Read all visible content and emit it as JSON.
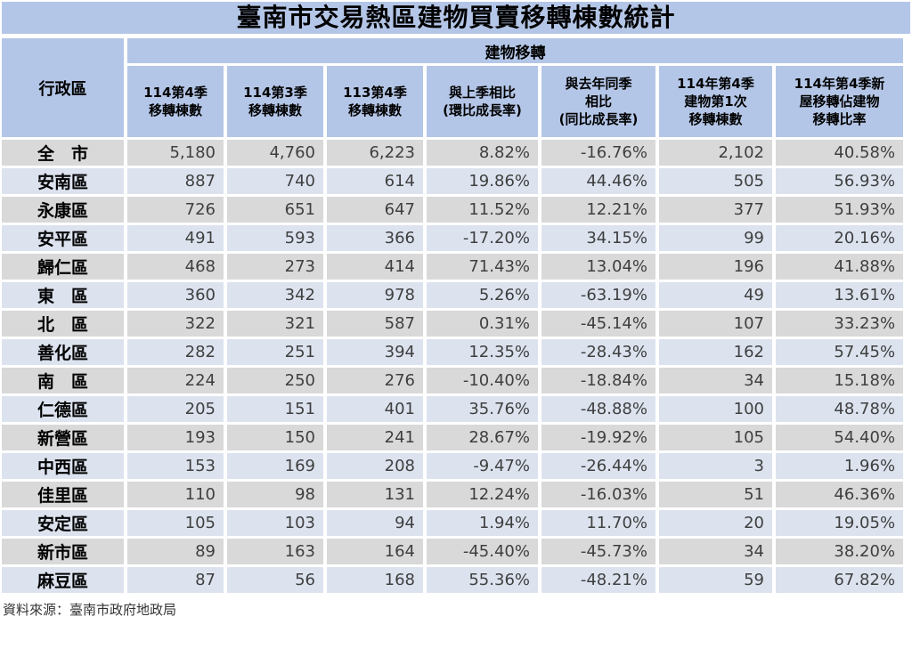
{
  "colors": {
    "header_blue": "#b4c6e7",
    "row_gray": "#d9d9d9",
    "row_blue": "#dce3ef"
  },
  "chart_data": {
    "type": "table",
    "title": "臺南市交易熱區建物買賣移轉棟數統計",
    "district_header": "行政區",
    "group_header": "建物移轉",
    "columns": [
      "114第4季\n移轉棟數",
      "114第3季\n移轉棟數",
      "113第4季\n移轉棟數",
      "與上季相比\n(環比成長率)",
      "與去年同季\n相比\n(同比成長率)",
      "114年第4季\n建物第1次\n移轉棟數",
      "114年第4季新\n屋移轉佔建物\n移轉比率"
    ],
    "rows": [
      {
        "district": "全　市",
        "values": [
          "5,180",
          "4,760",
          "6,223",
          "8.82%",
          "-16.76%",
          "2,102",
          "40.58%"
        ]
      },
      {
        "district": "安南區",
        "values": [
          "887",
          "740",
          "614",
          "19.86%",
          "44.46%",
          "505",
          "56.93%"
        ]
      },
      {
        "district": "永康區",
        "values": [
          "726",
          "651",
          "647",
          "11.52%",
          "12.21%",
          "377",
          "51.93%"
        ]
      },
      {
        "district": "安平區",
        "values": [
          "491",
          "593",
          "366",
          "-17.20%",
          "34.15%",
          "99",
          "20.16%"
        ]
      },
      {
        "district": "歸仁區",
        "values": [
          "468",
          "273",
          "414",
          "71.43%",
          "13.04%",
          "196",
          "41.88%"
        ]
      },
      {
        "district": "東　區",
        "values": [
          "360",
          "342",
          "978",
          "5.26%",
          "-63.19%",
          "49",
          "13.61%"
        ]
      },
      {
        "district": "北　區",
        "values": [
          "322",
          "321",
          "587",
          "0.31%",
          "-45.14%",
          "107",
          "33.23%"
        ]
      },
      {
        "district": "善化區",
        "values": [
          "282",
          "251",
          "394",
          "12.35%",
          "-28.43%",
          "162",
          "57.45%"
        ]
      },
      {
        "district": "南　區",
        "values": [
          "224",
          "250",
          "276",
          "-10.40%",
          "-18.84%",
          "34",
          "15.18%"
        ]
      },
      {
        "district": "仁德區",
        "values": [
          "205",
          "151",
          "401",
          "35.76%",
          "-48.88%",
          "100",
          "48.78%"
        ]
      },
      {
        "district": "新營區",
        "values": [
          "193",
          "150",
          "241",
          "28.67%",
          "-19.92%",
          "105",
          "54.40%"
        ]
      },
      {
        "district": "中西區",
        "values": [
          "153",
          "169",
          "208",
          "-9.47%",
          "-26.44%",
          "3",
          "1.96%"
        ]
      },
      {
        "district": "佳里區",
        "values": [
          "110",
          "98",
          "131",
          "12.24%",
          "-16.03%",
          "51",
          "46.36%"
        ]
      },
      {
        "district": "安定區",
        "values": [
          "105",
          "103",
          "94",
          "1.94%",
          "11.70%",
          "20",
          "19.05%"
        ]
      },
      {
        "district": "新市區",
        "values": [
          "89",
          "163",
          "164",
          "-45.40%",
          "-45.73%",
          "34",
          "38.20%"
        ]
      },
      {
        "district": "麻豆區",
        "values": [
          "87",
          "56",
          "168",
          "55.36%",
          "-48.21%",
          "59",
          "67.82%"
        ]
      }
    ],
    "source": "資料來源：臺南市政府地政局"
  }
}
